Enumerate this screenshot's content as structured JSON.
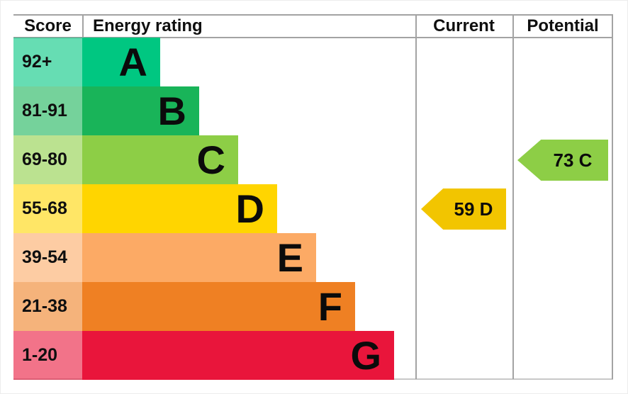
{
  "headers": {
    "score": "Score",
    "rating": "Energy rating",
    "current": "Current",
    "potential": "Potential"
  },
  "chart_data": {
    "type": "bar",
    "title": "Energy rating",
    "columns": [
      "Score",
      "Energy rating",
      "Current",
      "Potential"
    ],
    "categories": [
      "A",
      "B",
      "C",
      "D",
      "E",
      "F",
      "G"
    ],
    "score_ranges": [
      "92+",
      "81-91",
      "69-80",
      "55-68",
      "39-54",
      "21-38",
      "1-20"
    ],
    "band_colors": [
      "#00c781",
      "#19b459",
      "#8dce46",
      "#ffd500",
      "#fcaa65",
      "#ef8023",
      "#e9153b"
    ],
    "current": {
      "score": 59,
      "rating": "D",
      "label": "59 D",
      "color": "#f2c500"
    },
    "potential": {
      "score": 73,
      "rating": "C",
      "label": "73 C",
      "color": "#8dce46"
    }
  }
}
